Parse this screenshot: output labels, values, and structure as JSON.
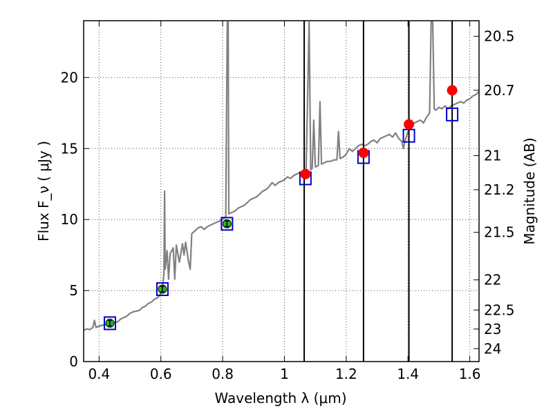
{
  "chart_data": {
    "type": "line",
    "xlabel": "Wavelength  λ (μm)",
    "ylabel": "Flux  F_ν  ( μJy )",
    "ylabel_right": "Magnitude (AB)",
    "xlim": [
      0.35,
      1.63
    ],
    "ylim": [
      0,
      24
    ],
    "grid": true,
    "x_ticks": [
      0.4,
      0.6,
      0.8,
      1.0,
      1.2,
      1.4,
      1.6
    ],
    "x_tick_labels": [
      "0.4",
      "0.6",
      "0.8",
      "1",
      "1.2",
      "1.4",
      "1.6"
    ],
    "y_ticks": [
      0,
      5,
      10,
      15,
      20
    ],
    "y_tick_labels": [
      "0",
      "5",
      "10",
      "15",
      "20"
    ],
    "right_ticks": [
      {
        "label": "20.5",
        "flux": 22.9
      },
      {
        "label": "20.7",
        "flux": 19.1
      },
      {
        "label": "21",
        "flux": 14.5
      },
      {
        "label": "21.2",
        "flux": 12.1
      },
      {
        "label": "21.5",
        "flux": 9.1
      },
      {
        "label": "22",
        "flux": 5.75
      },
      {
        "label": "22.5",
        "flux": 3.63
      },
      {
        "label": "23",
        "flux": 2.29
      },
      {
        "label": "24",
        "flux": 0.91
      }
    ],
    "vertical_lines": [
      1.064,
      1.256,
      1.403,
      1.543
    ],
    "series": [
      {
        "kind": "spectrum",
        "color": "#808080",
        "points": [
          [
            0.35,
            2.2
          ],
          [
            0.36,
            2.3
          ],
          [
            0.37,
            2.25
          ],
          [
            0.38,
            2.4
          ],
          [
            0.385,
            2.9
          ],
          [
            0.39,
            2.4
          ],
          [
            0.4,
            2.5
          ],
          [
            0.41,
            2.55
          ],
          [
            0.42,
            2.6
          ],
          [
            0.43,
            2.65
          ],
          [
            0.44,
            2.7
          ],
          [
            0.45,
            2.75
          ],
          [
            0.46,
            2.8
          ],
          [
            0.47,
            3.0
          ],
          [
            0.48,
            3.1
          ],
          [
            0.49,
            3.2
          ],
          [
            0.5,
            3.4
          ],
          [
            0.51,
            3.5
          ],
          [
            0.52,
            3.55
          ],
          [
            0.53,
            3.6
          ],
          [
            0.54,
            3.8
          ],
          [
            0.55,
            3.9
          ],
          [
            0.56,
            4.1
          ],
          [
            0.57,
            4.2
          ],
          [
            0.58,
            4.4
          ],
          [
            0.59,
            4.5
          ],
          [
            0.6,
            4.8
          ],
          [
            0.605,
            5.2
          ],
          [
            0.61,
            6.2
          ],
          [
            0.612,
            12.0
          ],
          [
            0.614,
            6.5
          ],
          [
            0.62,
            7.8
          ],
          [
            0.625,
            5.8
          ],
          [
            0.63,
            7.6
          ],
          [
            0.64,
            8.0
          ],
          [
            0.645,
            5.8
          ],
          [
            0.65,
            8.2
          ],
          [
            0.66,
            7.0
          ],
          [
            0.67,
            8.3
          ],
          [
            0.675,
            7.5
          ],
          [
            0.68,
            8.4
          ],
          [
            0.69,
            7.0
          ],
          [
            0.695,
            6.5
          ],
          [
            0.7,
            9.0
          ],
          [
            0.71,
            9.2
          ],
          [
            0.72,
            9.4
          ],
          [
            0.73,
            9.5
          ],
          [
            0.74,
            9.3
          ],
          [
            0.75,
            9.5
          ],
          [
            0.76,
            9.6
          ],
          [
            0.77,
            9.7
          ],
          [
            0.78,
            9.8
          ],
          [
            0.79,
            9.9
          ],
          [
            0.8,
            10.0
          ],
          [
            0.81,
            10.2
          ],
          [
            0.815,
            23.9
          ],
          [
            0.818,
            23.9
          ],
          [
            0.82,
            10.4
          ],
          [
            0.83,
            10.5
          ],
          [
            0.84,
            10.6
          ],
          [
            0.85,
            10.8
          ],
          [
            0.86,
            10.9
          ],
          [
            0.87,
            11.0
          ],
          [
            0.88,
            11.2
          ],
          [
            0.89,
            11.4
          ],
          [
            0.9,
            11.5
          ],
          [
            0.91,
            11.6
          ],
          [
            0.92,
            11.8
          ],
          [
            0.93,
            12.0
          ],
          [
            0.94,
            12.1
          ],
          [
            0.95,
            12.3
          ],
          [
            0.96,
            12.6
          ],
          [
            0.97,
            12.4
          ],
          [
            0.98,
            12.6
          ],
          [
            0.99,
            12.7
          ],
          [
            1.0,
            12.8
          ],
          [
            1.01,
            13.0
          ],
          [
            1.02,
            12.9
          ],
          [
            1.03,
            13.1
          ],
          [
            1.04,
            13.2
          ],
          [
            1.05,
            13.3
          ],
          [
            1.06,
            13.3
          ],
          [
            1.07,
            13.4
          ],
          [
            1.08,
            23.9
          ],
          [
            1.085,
            13.5
          ],
          [
            1.09,
            13.6
          ],
          [
            1.095,
            17.0
          ],
          [
            1.1,
            13.7
          ],
          [
            1.11,
            13.8
          ],
          [
            1.115,
            18.3
          ],
          [
            1.12,
            13.9
          ],
          [
            1.13,
            14.0
          ],
          [
            1.14,
            14.1
          ],
          [
            1.15,
            14.1
          ],
          [
            1.16,
            14.2
          ],
          [
            1.17,
            14.2
          ],
          [
            1.175,
            16.2
          ],
          [
            1.18,
            14.3
          ],
          [
            1.19,
            14.4
          ],
          [
            1.2,
            14.6
          ],
          [
            1.21,
            15.0
          ],
          [
            1.22,
            14.8
          ],
          [
            1.23,
            15.0
          ],
          [
            1.24,
            15.2
          ],
          [
            1.25,
            15.3
          ],
          [
            1.26,
            15.2
          ],
          [
            1.27,
            15.3
          ],
          [
            1.28,
            15.5
          ],
          [
            1.29,
            15.6
          ],
          [
            1.3,
            15.4
          ],
          [
            1.31,
            15.7
          ],
          [
            1.32,
            15.8
          ],
          [
            1.33,
            15.9
          ],
          [
            1.34,
            16.0
          ],
          [
            1.35,
            15.8
          ],
          [
            1.36,
            16.1
          ],
          [
            1.37,
            15.7
          ],
          [
            1.38,
            15.5
          ],
          [
            1.385,
            15.0
          ],
          [
            1.39,
            15.5
          ],
          [
            1.4,
            16.2
          ],
          [
            1.41,
            16.5
          ],
          [
            1.42,
            16.8
          ],
          [
            1.43,
            16.9
          ],
          [
            1.44,
            17.0
          ],
          [
            1.45,
            16.8
          ],
          [
            1.46,
            17.2
          ],
          [
            1.47,
            17.5
          ],
          [
            1.475,
            23.9
          ],
          [
            1.48,
            23.9
          ],
          [
            1.485,
            17.8
          ],
          [
            1.49,
            17.7
          ],
          [
            1.5,
            17.9
          ],
          [
            1.51,
            17.8
          ],
          [
            1.52,
            18.0
          ],
          [
            1.53,
            17.8
          ],
          [
            1.54,
            18.0
          ],
          [
            1.55,
            18.1
          ],
          [
            1.56,
            18.2
          ],
          [
            1.57,
            18.3
          ],
          [
            1.58,
            18.2
          ],
          [
            1.59,
            18.4
          ],
          [
            1.6,
            18.5
          ],
          [
            1.61,
            18.7
          ],
          [
            1.62,
            18.8
          ],
          [
            1.63,
            19.0
          ]
        ]
      },
      {
        "kind": "observed_points",
        "color": "#22bb22",
        "points": [
          [
            0.435,
            2.7
          ],
          [
            0.605,
            5.1
          ],
          [
            0.814,
            9.7
          ]
        ]
      },
      {
        "kind": "model_squares",
        "color": "#0000cc",
        "points": [
          [
            0.435,
            2.7
          ],
          [
            0.605,
            5.1
          ],
          [
            0.814,
            9.7
          ],
          [
            1.068,
            12.9
          ],
          [
            1.256,
            14.4
          ],
          [
            1.403,
            15.9
          ],
          [
            1.543,
            17.4
          ]
        ]
      },
      {
        "kind": "limit_points",
        "color": "#ff0000",
        "points": [
          [
            1.068,
            13.2
          ],
          [
            1.256,
            14.7
          ],
          [
            1.403,
            16.7
          ],
          [
            1.543,
            19.1
          ]
        ]
      }
    ]
  }
}
